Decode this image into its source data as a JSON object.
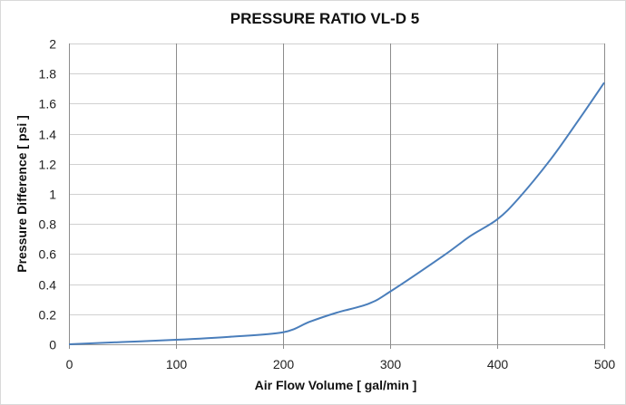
{
  "chart_data": {
    "type": "line",
    "title": "PRESSURE RATIO VL-D 5",
    "xlabel": "Air Flow Volume [ gal/min ]",
    "ylabel": "Pressure Difference  [ psi ]",
    "xlim": [
      0,
      500
    ],
    "ylim": [
      0,
      2
    ],
    "xticks": [
      0,
      100,
      200,
      300,
      400,
      500
    ],
    "yticks": [
      0,
      0.2,
      0.4,
      0.6,
      0.8,
      1,
      1.2,
      1.4,
      1.6,
      1.8,
      2
    ],
    "grid": true,
    "legend": "none",
    "series": [
      {
        "name": "VL-D 5",
        "color": "#4a7ebb",
        "x": [
          0,
          50,
          100,
          150,
          200,
          225,
          250,
          280,
          300,
          350,
          375,
          400,
          420,
          450,
          475,
          500
        ],
        "y": [
          0,
          0.015,
          0.03,
          0.05,
          0.08,
          0.15,
          0.21,
          0.27,
          0.35,
          0.59,
          0.72,
          0.83,
          0.97,
          1.23,
          1.48,
          1.74
        ]
      }
    ]
  }
}
